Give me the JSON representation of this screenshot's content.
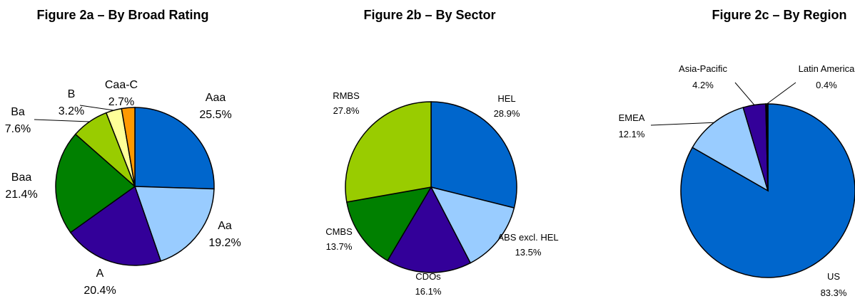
{
  "chart_data": [
    {
      "type": "pie",
      "title": "Figure 2a – By Broad Rating",
      "categories": [
        "Aaa",
        "Aa",
        "A",
        "Baa",
        "Ba",
        "B",
        "Caa-C"
      ],
      "values": [
        25.5,
        19.2,
        20.4,
        21.4,
        7.6,
        3.2,
        2.7
      ],
      "value_labels": [
        "25.5%",
        "19.2%",
        "20.4%",
        "21.4%",
        "7.6%",
        "3.2%",
        "2.7%"
      ],
      "colors": [
        "#0066cc",
        "#99ccff",
        "#330099",
        "#008000",
        "#99cc00",
        "#ffff99",
        "#ff9900"
      ]
    },
    {
      "type": "pie",
      "title": "Figure 2b – By Sector",
      "categories": [
        "HEL",
        "ABS excl. HEL",
        "CDOs",
        "CMBS",
        "RMBS"
      ],
      "values": [
        28.9,
        13.5,
        16.1,
        13.7,
        27.8
      ],
      "value_labels": [
        "28.9%",
        "13.5%",
        "16.1%",
        "13.7%",
        "27.8%"
      ],
      "colors": [
        "#0066cc",
        "#99ccff",
        "#330099",
        "#008000",
        "#99cc00"
      ]
    },
    {
      "type": "pie",
      "title": "Figure 2c – By Region",
      "categories": [
        "US",
        "EMEA",
        "Asia-Pacific",
        "Latin America"
      ],
      "values": [
        83.3,
        12.1,
        4.2,
        0.4
      ],
      "value_labels": [
        "83.3%",
        "12.1%",
        "4.2%",
        "0.4%"
      ],
      "colors": [
        "#0066cc",
        "#99ccff",
        "#330099",
        "#000000"
      ]
    }
  ]
}
